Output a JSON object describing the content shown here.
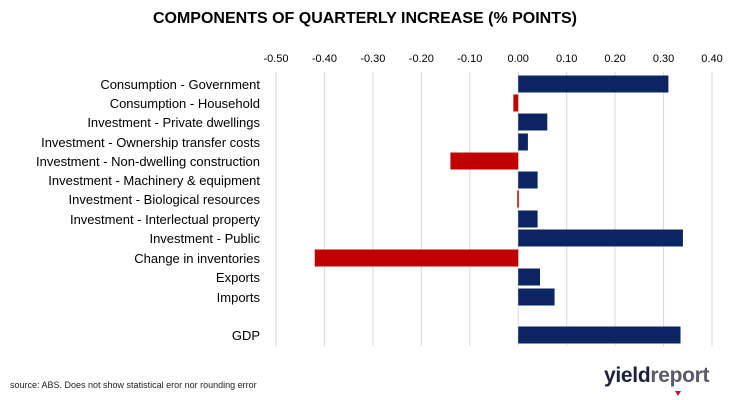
{
  "chart_data": {
    "type": "bar",
    "orientation": "horizontal",
    "title": "COMPONENTS OF QUARTERLY INCREASE (% POINTS)",
    "categories": [
      "Consumption - Government",
      "Consumption - Household",
      "Investment - Private dwellings",
      "Investment - Ownership transfer costs",
      "Investment - Non-dwelling construction",
      "Investment - Machinery & equipment",
      "Investment - Biological resources",
      "Investment - Interlectual property",
      "Investment - Public",
      "Change in inventories",
      "Exports",
      "Imports",
      "GDP"
    ],
    "values": [
      0.31,
      -0.01,
      0.06,
      0.02,
      -0.14,
      0.04,
      -0.002,
      0.04,
      0.34,
      -0.42,
      0.045,
      0.075,
      0.335
    ],
    "xlim": [
      -0.5,
      0.4
    ],
    "xticks": [
      -0.5,
      -0.4,
      -0.3,
      -0.2,
      -0.1,
      0.0,
      0.1,
      0.2,
      0.3,
      0.4
    ],
    "xtick_labels": [
      "-0.50",
      "-0.40",
      "-0.30",
      "-0.20",
      "-0.10",
      "0.00",
      "0.10",
      "0.20",
      "0.30",
      "0.40"
    ],
    "grid": true,
    "colors": {
      "positive": "#0d2463",
      "negative": "#c00000",
      "grid": "#d9d9d9"
    }
  },
  "footer": {
    "source": "source: ABS. Does not show statistical eror nor rounding error",
    "logo_part1": "yield",
    "logo_part2": "report"
  }
}
